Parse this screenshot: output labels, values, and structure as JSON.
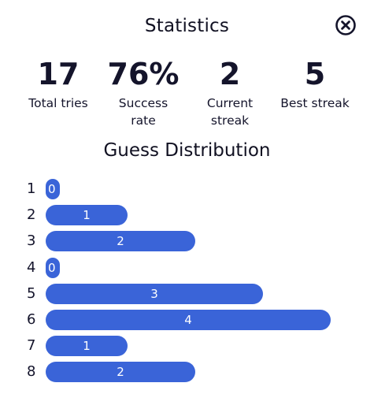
{
  "title": "Statistics",
  "stats": [
    {
      "value": "17",
      "label_line1": "Total tries",
      "label_line2": ""
    },
    {
      "value": "76%",
      "label_line1": "Success",
      "label_line2": "rate"
    },
    {
      "value": "2",
      "label_line1": "Current",
      "label_line2": "streak"
    },
    {
      "value": "5",
      "label_line1": "Best streak",
      "label_line2": ""
    }
  ],
  "distribution_title": "Guess Distribution",
  "distribution": [
    {
      "guess": "1",
      "count": 0
    },
    {
      "guess": "2",
      "count": 1
    },
    {
      "guess": "3",
      "count": 2
    },
    {
      "guess": "4",
      "count": 0
    },
    {
      "guess": "5",
      "count": 3
    },
    {
      "guess": "6",
      "count": 4
    },
    {
      "guess": "7",
      "count": 1
    },
    {
      "guess": "8",
      "count": 2
    }
  ],
  "colors": {
    "bar": "#3a64d8",
    "text": "#14142b"
  },
  "icons": {
    "close": "close-circle-icon"
  }
}
